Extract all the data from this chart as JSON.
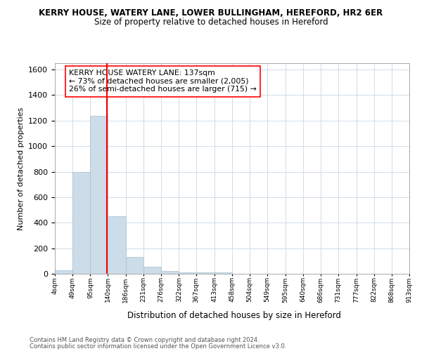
{
  "title_line1": "KERRY HOUSE, WATERY LANE, LOWER BULLINGHAM, HEREFORD, HR2 6ER",
  "title_line2": "Size of property relative to detached houses in Hereford",
  "xlabel": "Distribution of detached houses by size in Hereford",
  "ylabel": "Number of detached properties",
  "footnote1": "Contains HM Land Registry data © Crown copyright and database right 2024.",
  "footnote2": "Contains public sector information licensed under the Open Government Licence v3.0.",
  "bar_edges": [
    4,
    49,
    95,
    140,
    186,
    231,
    276,
    322,
    367,
    413,
    458,
    504,
    549,
    595,
    640,
    686,
    731,
    777,
    822,
    868,
    913
  ],
  "bar_heights": [
    25,
    800,
    1240,
    450,
    130,
    55,
    20,
    10,
    10,
    10,
    0,
    0,
    0,
    0,
    0,
    0,
    0,
    0,
    0,
    0
  ],
  "bar_color": "#ccdce8",
  "bar_edgecolor": "#a8c0d0",
  "red_line_x": 137,
  "ylim": [
    0,
    1650
  ],
  "yticks": [
    0,
    200,
    400,
    600,
    800,
    1000,
    1200,
    1400,
    1600
  ],
  "annotation_text": "KERRY HOUSE WATERY LANE: 137sqm\n← 73% of detached houses are smaller (2,005)\n26% of semi-detached houses are larger (715) →",
  "grid_color": "#d0dce8"
}
